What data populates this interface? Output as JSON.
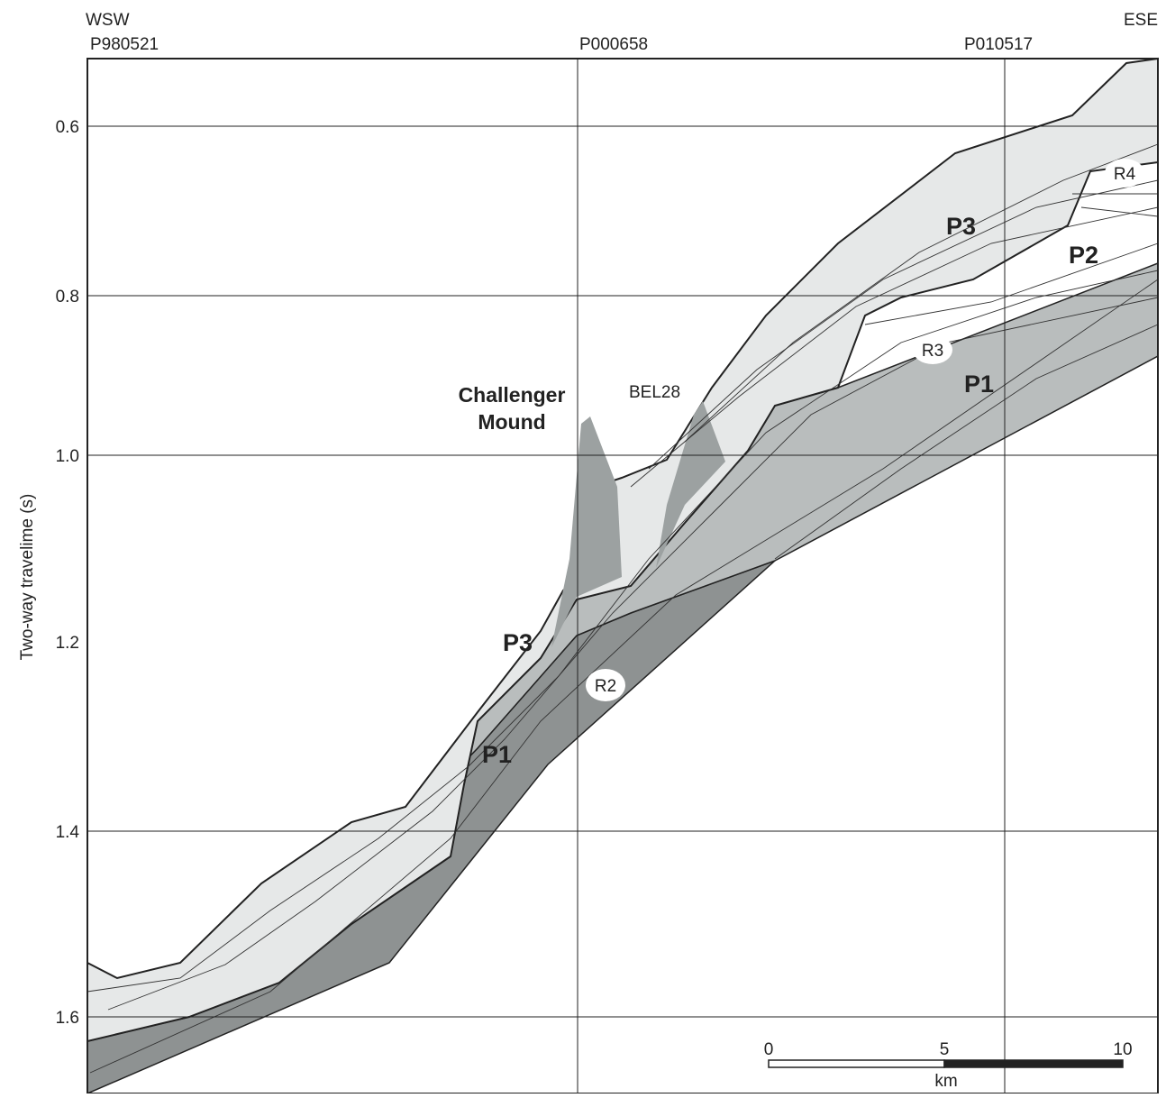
{
  "directions": {
    "left": "WSW",
    "right": "ESE"
  },
  "profiles": [
    "P980521",
    "P000658",
    "P010517"
  ],
  "y_axis": {
    "label": "Two-way travelime (s)",
    "ticks": [
      "0.6",
      "0.8",
      "1.0",
      "1.2",
      "1.4",
      "1.6"
    ]
  },
  "units": {
    "p3_left": "P3",
    "p1_left": "P1",
    "p3_right": "P3",
    "p2": "P2",
    "p1_right": "P1"
  },
  "reflectors": {
    "r2": "R2",
    "r3": "R3",
    "r4": "R4"
  },
  "features": {
    "challenger_line1": "Challenger",
    "challenger_line2": "Mound",
    "bel28": "BEL28"
  },
  "scale_bar": {
    "ticks": [
      "0",
      "5",
      "10"
    ],
    "unit": "km"
  }
}
